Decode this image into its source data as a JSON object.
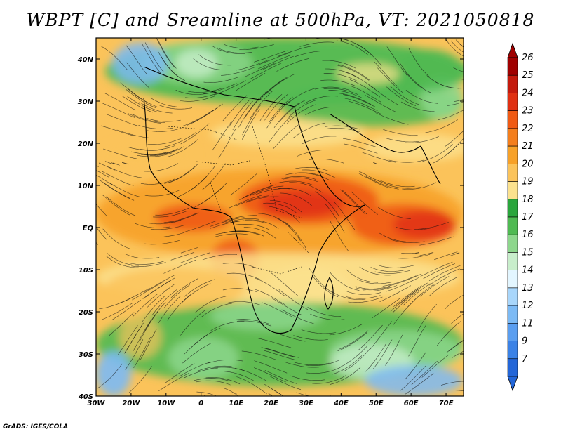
{
  "title": "WBPT [C] and Sreamline at 500hPa, VT: 2021050818",
  "footer": "GrADS: IGES/COLA",
  "x_axis": {
    "labels": [
      "30W",
      "20W",
      "10W",
      "0",
      "10E",
      "20E",
      "30E",
      "40E",
      "50E",
      "60E",
      "70E"
    ],
    "values": [
      -30,
      -20,
      -10,
      0,
      10,
      20,
      30,
      40,
      50,
      60,
      70
    ],
    "range": [
      -30,
      75
    ]
  },
  "y_axis": {
    "labels": [
      "40N",
      "30N",
      "20N",
      "10N",
      "EQ",
      "10S",
      "20S",
      "30S",
      "40S"
    ],
    "values": [
      40,
      30,
      20,
      10,
      0,
      -10,
      -20,
      -30,
      -40
    ],
    "range": [
      -40,
      45
    ]
  },
  "colorbar": {
    "levels": [
      "26",
      "25",
      "24",
      "23",
      "22",
      "21",
      "20",
      "19",
      "18",
      "17",
      "16",
      "15",
      "14",
      "13",
      "12",
      "11",
      "9",
      "7"
    ],
    "colors": [
      "#a00000",
      "#c41a0d",
      "#e03012",
      "#f05a14",
      "#f47e1c",
      "#f7a128",
      "#fbc35a",
      "#fce28e",
      "#2aa63c",
      "#4fba52",
      "#8dd78c",
      "#c8eecb",
      "#e3f6ff",
      "#a8d6fb",
      "#7cbaf5",
      "#5a9ef0",
      "#3b82e6",
      "#2366d8"
    ]
  },
  "field_colors": {
    "blue": "#7cbaf5",
    "lightblue": "#c8eecb",
    "green": "#4fba52",
    "lightgreen": "#8dd78c",
    "yellow": "#fce28e",
    "tan": "#fbc35a",
    "orange": "#f7a128",
    "darkorange": "#f05a14",
    "red": "#e03012"
  }
}
